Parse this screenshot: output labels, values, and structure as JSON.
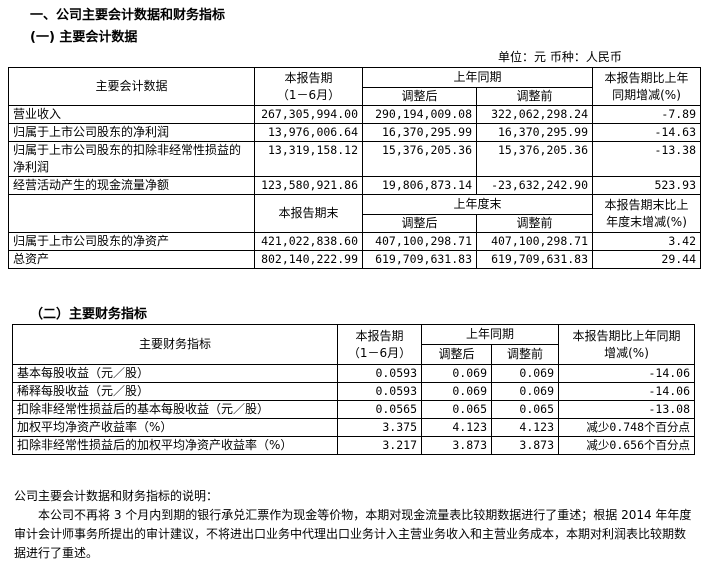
{
  "section_title": "一、公司主要会计数据和财务指标",
  "sub1_title": "(一) 主要会计数据",
  "unit_line": "单位：元  币种：人民币",
  "t1": {
    "h_item": "主要会计数据",
    "h_cur": "本报告期",
    "h_cur2": "（1－6月）",
    "h_prev": "上年同期",
    "h_adj": "调整后",
    "h_before": "调整前",
    "h_chg": "本报告期比上年",
    "h_chg2": "同期增减(%)",
    "rows": [
      {
        "label": "营业收入",
        "cur": "267,305,994.00",
        "adj": "290,194,009.08",
        "before": "322,062,298.24",
        "chg": "-7.89"
      },
      {
        "label": "归属于上市公司股东的净利润",
        "cur": "13,976,006.64",
        "adj": "16,370,295.99",
        "before": "16,370,295.99",
        "chg": "-14.63"
      },
      {
        "label": "归属于上市公司股东的扣除非经常性损益的净利润",
        "cur": "13,319,158.12",
        "adj": "15,376,205.36",
        "before": "15,376,205.36",
        "chg": "-13.38"
      },
      {
        "label": "经营活动产生的现金流量净额",
        "cur": "123,580,921.86",
        "adj": "19,806,873.14",
        "before": "-23,632,242.90",
        "chg": "523.93"
      }
    ],
    "h2_cur": "本报告期末",
    "h2_prev": "上年度末",
    "h2_adj": "调整后",
    "h2_before": "调整前",
    "h2_chg": "本报告期末比上",
    "h2_chg2": "年度末增减(%)",
    "rows2": [
      {
        "label": "归属于上市公司股东的净资产",
        "cur": "421,022,838.60",
        "adj": "407,100,298.71",
        "before": "407,100,298.71",
        "chg": "3.42"
      },
      {
        "label": "总资产",
        "cur": "802,140,222.99",
        "adj": "619,709,631.83",
        "before": "619,709,631.83",
        "chg": "29.44"
      }
    ]
  },
  "sub2_title": "（二）主要财务指标",
  "t2": {
    "h_item": "主要财务指标",
    "h_cur": "本报告期",
    "h_cur2": "（1－6月）",
    "h_prev": "上年同期",
    "h_adj": "调整后",
    "h_before": "调整前",
    "h_chg": "本报告期比上年同期",
    "h_chg2": "增减(%)",
    "rows": [
      {
        "label": "基本每股收益（元／股）",
        "cur": "0.0593",
        "adj": "0.069",
        "before": "0.069",
        "chg": "-14.06"
      },
      {
        "label": "稀释每股收益（元／股）",
        "cur": "0.0593",
        "adj": "0.069",
        "before": "0.069",
        "chg": "-14.06"
      },
      {
        "label": "扣除非经常性损益后的基本每股收益（元／股）",
        "cur": "0.0565",
        "adj": "0.065",
        "before": "0.065",
        "chg": "-13.08"
      },
      {
        "label": "加权平均净资产收益率（%）",
        "cur": "3.375",
        "adj": "4.123",
        "before": "4.123",
        "chg": "减少0.748个百分点"
      },
      {
        "label": "扣除非经常性损益后的加权平均净资产收益率（%）",
        "cur": "3.217",
        "adj": "3.873",
        "before": "3.873",
        "chg": "减少0.656个百分点"
      }
    ]
  },
  "note_title": "公司主要会计数据和财务指标的说明：",
  "note_body": "本公司不再将 3 个月内到期的银行承兑汇票作为现金等价物，本期对现金流量表比较期数据进行了重述；根据 2014 年年度审计会计师事务所提出的审计建议，不将进出口业务中代理出口业务计入主营业务收入和主营业务成本，本期对利润表比较期数据进行了重述。"
}
